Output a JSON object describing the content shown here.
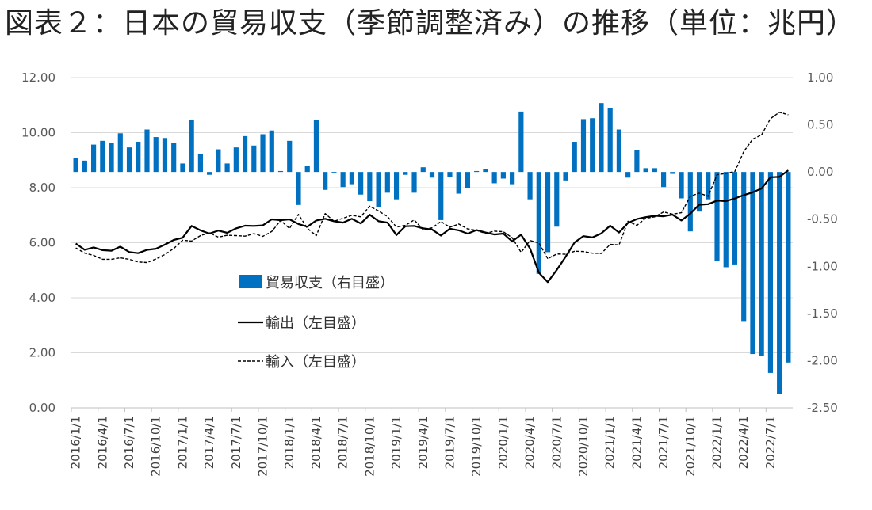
{
  "title": "図表２：日本の貿易収支（季節調整済み）の推移（単位：兆円）",
  "colors": {
    "bar": "#0070C0",
    "export": "#000000",
    "import": "#000000",
    "grid": "#D9D9D9"
  },
  "chart_data": {
    "type": "bar+line",
    "title": "図表２：日本の貿易収支（季節調整済み）の推移（単位：兆円）",
    "x": [
      "2016/1/1",
      "2016/2/1",
      "2016/3/1",
      "2016/4/1",
      "2016/5/1",
      "2016/6/1",
      "2016/7/1",
      "2016/8/1",
      "2016/9/1",
      "2016/10/1",
      "2016/11/1",
      "2016/12/1",
      "2017/1/1",
      "2017/2/1",
      "2017/3/1",
      "2017/4/1",
      "2017/5/1",
      "2017/6/1",
      "2017/7/1",
      "2017/8/1",
      "2017/9/1",
      "2017/10/1",
      "2017/11/1",
      "2017/12/1",
      "2018/1/1",
      "2018/2/1",
      "2018/3/1",
      "2018/4/1",
      "2018/5/1",
      "2018/6/1",
      "2018/7/1",
      "2018/8/1",
      "2018/9/1",
      "2018/10/1",
      "2018/11/1",
      "2018/12/1",
      "2019/1/1",
      "2019/2/1",
      "2019/3/1",
      "2019/4/1",
      "2019/5/1",
      "2019/6/1",
      "2019/7/1",
      "2019/8/1",
      "2019/9/1",
      "2019/10/1",
      "2019/11/1",
      "2019/12/1",
      "2020/1/1",
      "2020/2/1",
      "2020/3/1",
      "2020/4/1",
      "2020/5/1",
      "2020/6/1",
      "2020/7/1",
      "2020/8/1",
      "2020/9/1",
      "2020/10/1",
      "2020/11/1",
      "2020/12/1",
      "2021/1/1",
      "2021/2/1",
      "2021/3/1",
      "2021/4/1",
      "2021/5/1",
      "2021/6/1",
      "2021/7/1",
      "2021/8/1",
      "2021/9/1",
      "2021/10/1",
      "2021/11/1",
      "2021/12/1",
      "2022/1/1",
      "2022/2/1",
      "2022/3/1",
      "2022/4/1",
      "2022/5/1",
      "2022/6/1",
      "2022/7/1",
      "2022/8/1",
      "2022/9/1"
    ],
    "x_tick_labels": [
      "2016/1/1",
      "2016/4/1",
      "2016/7/1",
      "2016/10/1",
      "2017/1/1",
      "2017/4/1",
      "2017/7/1",
      "2017/10/1",
      "2018/1/1",
      "2018/4/1",
      "2018/7/1",
      "2018/10/1",
      "2019/1/1",
      "2019/4/1",
      "2019/7/1",
      "2019/10/1",
      "2020/1/1",
      "2020/4/1",
      "2020/7/1",
      "2020/10/1",
      "2021/1/1",
      "2021/4/1",
      "2021/7/1",
      "2021/10/1",
      "2022/1/1",
      "2022/4/1",
      "2022/7/1"
    ],
    "y_left": {
      "min": 0,
      "max": 12,
      "ticks": [
        "0.00",
        "2.00",
        "4.00",
        "6.00",
        "8.00",
        "10.00",
        "12.00"
      ]
    },
    "y_right": {
      "min": -2.5,
      "max": 1.0,
      "ticks": [
        "-2.50",
        "-2.00",
        "-1.50",
        "-1.00",
        "-0.50",
        "0.00",
        "0.50",
        "1.00"
      ]
    },
    "grid": true,
    "legend_position": "center-left",
    "series": [
      {
        "name": "貿易収支（右目盛）",
        "type": "bar",
        "axis": "right",
        "values": [
          0.15,
          0.12,
          0.29,
          0.33,
          0.31,
          0.41,
          0.26,
          0.32,
          0.45,
          0.37,
          0.36,
          0.31,
          0.09,
          0.55,
          0.19,
          -0.03,
          0.24,
          0.09,
          0.26,
          0.38,
          0.28,
          0.4,
          0.44,
          0.01,
          0.33,
          -0.35,
          0.06,
          0.55,
          -0.19,
          0.0,
          -0.16,
          -0.13,
          -0.24,
          -0.31,
          -0.37,
          -0.22,
          -0.29,
          -0.03,
          -0.22,
          0.05,
          -0.06,
          -0.51,
          -0.05,
          -0.23,
          -0.17,
          0.01,
          0.03,
          -0.12,
          -0.07,
          -0.13,
          0.64,
          -0.29,
          -1.08,
          -0.85,
          -0.58,
          -0.09,
          0.32,
          0.56,
          0.57,
          0.73,
          0.68,
          0.45,
          -0.06,
          0.23,
          0.04,
          0.04,
          -0.16,
          -0.02,
          -0.28,
          -0.63,
          -0.42,
          -0.29,
          -0.94,
          -1.01,
          -0.98,
          -1.58,
          -1.93,
          -1.95,
          -2.13,
          -2.35,
          -2.02
        ]
      },
      {
        "name": "輸出（左目盛）",
        "type": "line",
        "axis": "left",
        "style": "solid",
        "values": [
          5.97,
          5.74,
          5.83,
          5.73,
          5.71,
          5.86,
          5.66,
          5.62,
          5.74,
          5.78,
          5.93,
          6.1,
          6.18,
          6.61,
          6.45,
          6.33,
          6.44,
          6.36,
          6.52,
          6.62,
          6.61,
          6.63,
          6.85,
          6.82,
          6.85,
          6.68,
          6.58,
          6.81,
          6.87,
          6.78,
          6.73,
          6.87,
          6.7,
          7.02,
          6.78,
          6.73,
          6.28,
          6.6,
          6.61,
          6.52,
          6.48,
          6.26,
          6.51,
          6.45,
          6.33,
          6.46,
          6.37,
          6.3,
          6.33,
          6.05,
          6.29,
          5.79,
          4.91,
          4.57,
          5.01,
          5.49,
          6.01,
          6.24,
          6.19,
          6.34,
          6.62,
          6.37,
          6.72,
          6.86,
          6.93,
          6.98,
          6.96,
          7.02,
          6.81,
          7.06,
          7.38,
          7.4,
          7.53,
          7.51,
          7.61,
          7.73,
          7.83,
          7.97,
          8.38,
          8.39,
          8.63
        ]
      },
      {
        "name": "輸入（左目盛）",
        "type": "line",
        "axis": "left",
        "style": "dashed",
        "values": [
          5.81,
          5.62,
          5.54,
          5.4,
          5.4,
          5.45,
          5.4,
          5.3,
          5.28,
          5.41,
          5.57,
          5.79,
          6.09,
          6.06,
          6.26,
          6.36,
          6.2,
          6.27,
          6.26,
          6.24,
          6.33,
          6.23,
          6.41,
          6.81,
          6.52,
          7.03,
          6.52,
          6.26,
          7.06,
          6.78,
          6.89,
          7.0,
          6.94,
          7.33,
          7.15,
          6.95,
          6.57,
          6.63,
          6.83,
          6.47,
          6.54,
          6.77,
          6.56,
          6.68,
          6.5,
          6.45,
          6.34,
          6.42,
          6.4,
          6.18,
          5.65,
          6.08,
          5.99,
          5.42,
          5.59,
          5.58,
          5.69,
          5.68,
          5.62,
          5.61,
          5.94,
          5.92,
          6.78,
          6.63,
          6.89,
          6.94,
          7.12,
          7.04,
          7.09,
          7.69,
          7.8,
          7.69,
          8.47,
          8.52,
          8.59,
          9.31,
          9.76,
          9.92,
          10.51,
          10.74,
          10.65
        ]
      }
    ]
  }
}
